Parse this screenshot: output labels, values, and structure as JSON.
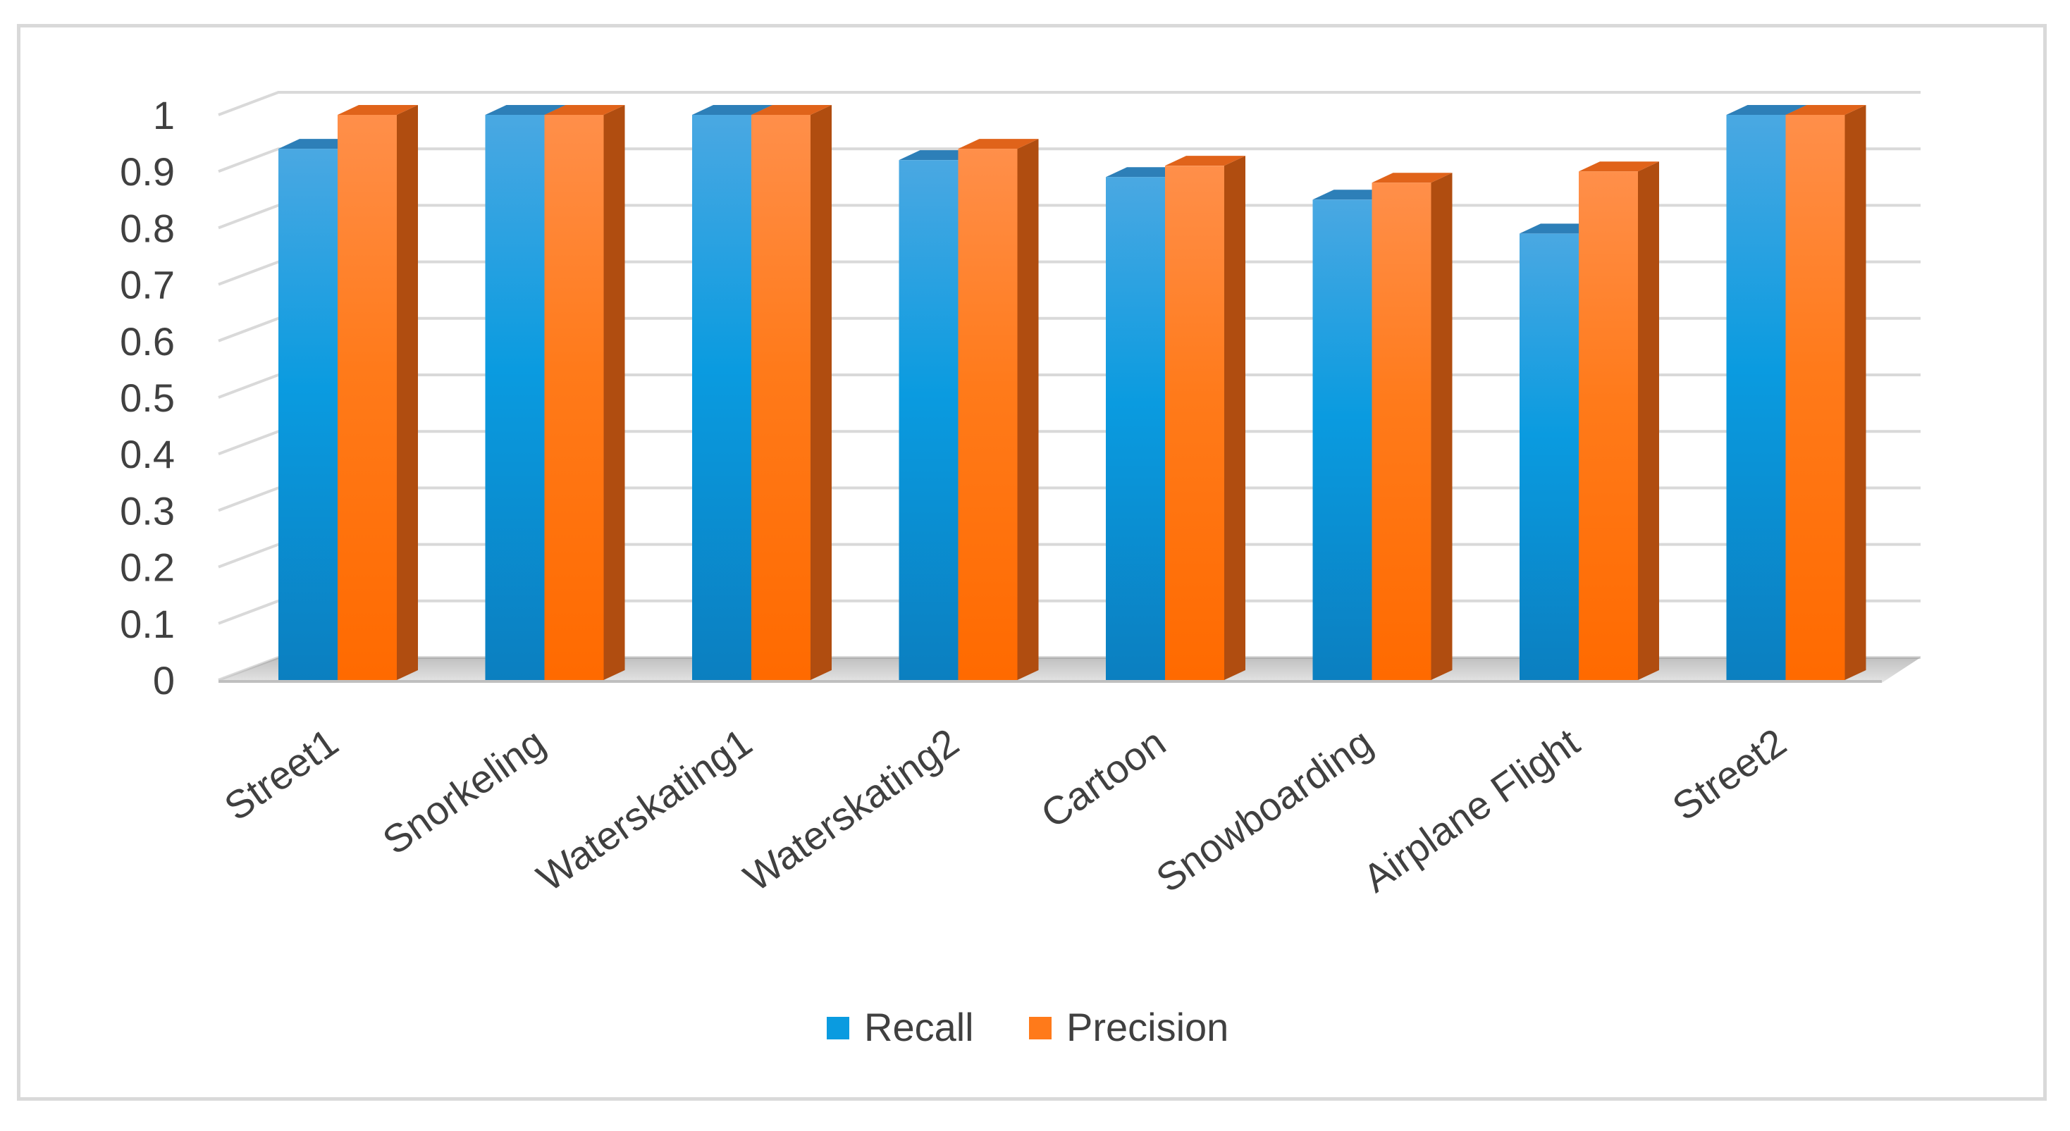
{
  "chart_data": {
    "type": "bar",
    "style": "3d-clustered-column",
    "categories": [
      "Street1",
      "Snorkeling",
      "Waterskating1",
      "Waterskating2",
      "Cartoon",
      "Snowboarding",
      "Airplane Flight",
      "Street2"
    ],
    "series": [
      {
        "name": "Recall",
        "values": [
          0.94,
          1.0,
          1.0,
          0.92,
          0.89,
          0.85,
          0.79,
          1.0
        ],
        "color": "#0a9be0"
      },
      {
        "name": "Precision",
        "values": [
          1.0,
          1.0,
          1.0,
          0.94,
          0.91,
          0.88,
          0.9,
          1.0
        ],
        "color": "#ff7a1a"
      }
    ],
    "yticks": [
      "0",
      "0.1",
      "0.2",
      "0.3",
      "0.4",
      "0.5",
      "0.6",
      "0.7",
      "0.8",
      "0.9",
      "1"
    ],
    "ylim": [
      0,
      1
    ],
    "grid": true,
    "legend": "bottom-center"
  }
}
